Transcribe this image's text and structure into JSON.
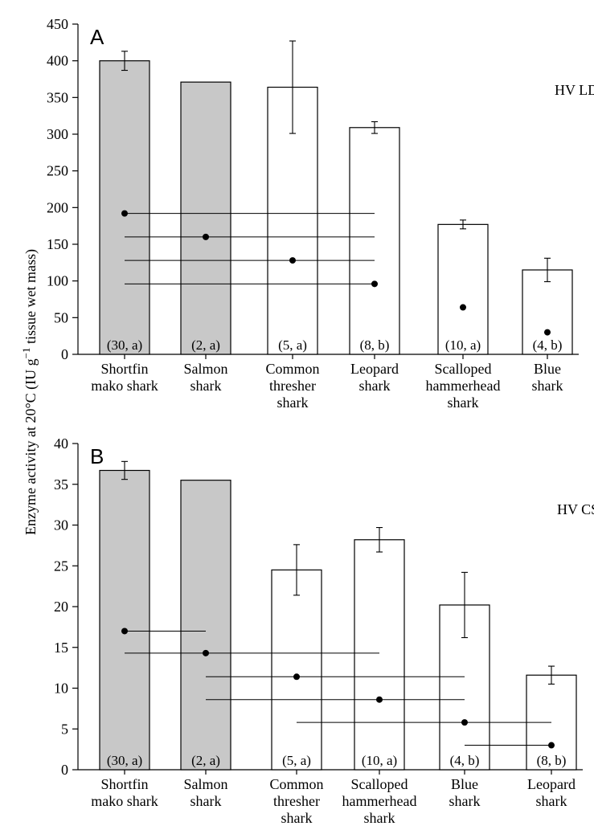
{
  "ylabel_parts": [
    "Enzyme activity at 20°C (IU g",
    "−1",
    " tissue wet mass)"
  ],
  "chart_data": [
    {
      "type": "bar",
      "panel": "A",
      "annotation": "HV LDH",
      "ylim": [
        0,
        450
      ],
      "yticks": [
        0,
        50,
        100,
        150,
        200,
        250,
        300,
        350,
        400,
        450
      ],
      "categories": [
        [
          "Shortfin",
          "mako shark"
        ],
        [
          "Salmon",
          "shark"
        ],
        [
          "Common",
          "thresher",
          "shark"
        ],
        [
          "Leopard",
          "shark"
        ],
        [
          "Scalloped",
          "hammerhead",
          "shark"
        ],
        [
          "Blue",
          "shark"
        ]
      ],
      "values": [
        400,
        371,
        364,
        309,
        177,
        115
      ],
      "errors": [
        13,
        0,
        63,
        8,
        6,
        16
      ],
      "fill": [
        "#c8c8c8",
        "#c8c8c8",
        "#ffffff",
        "#ffffff",
        "#ffffff",
        "#ffffff"
      ],
      "sample_labels": [
        "(30, a)",
        "(2, a)",
        "(5, a)",
        "(8, b)",
        "(10, a)",
        "(4, b)"
      ],
      "comparison_lines": [
        {
          "from": 0,
          "to": 3,
          "y": 192,
          "dot": 0
        },
        {
          "from": 0,
          "to": 3,
          "y": 160,
          "dot": 1
        },
        {
          "from": 0,
          "to": 3,
          "y": 128,
          "dot": 2
        },
        {
          "from": 0,
          "to": 3,
          "y": 96,
          "dot": 3
        }
      ],
      "dots": [
        {
          "category": 4,
          "y": 64
        },
        {
          "category": 5,
          "y": 30
        }
      ]
    },
    {
      "type": "bar",
      "panel": "B",
      "annotation": "HV CS",
      "ylim": [
        0,
        40
      ],
      "yticks": [
        0,
        5,
        10,
        15,
        20,
        25,
        30,
        35,
        40
      ],
      "categories": [
        [
          "Shortfin",
          "mako shark"
        ],
        [
          "Salmon",
          "shark"
        ],
        [
          "Common",
          "thresher",
          "shark"
        ],
        [
          "Scalloped",
          "hammerhead",
          "shark"
        ],
        [
          "Blue",
          "shark"
        ],
        [
          "Leopard",
          "shark"
        ]
      ],
      "values": [
        36.7,
        35.5,
        24.5,
        28.2,
        20.2,
        11.6
      ],
      "errors": [
        1.1,
        0,
        3.1,
        1.5,
        4.0,
        1.1
      ],
      "fill": [
        "#c8c8c8",
        "#c8c8c8",
        "#ffffff",
        "#ffffff",
        "#ffffff",
        "#ffffff"
      ],
      "sample_labels": [
        "(30, a)",
        "(2, a)",
        "(5, a)",
        "(10, a)",
        "(4, b)",
        "(8, b)"
      ],
      "comparison_lines": [
        {
          "from": 0,
          "to": 1,
          "y": 17,
          "dot": 0
        },
        {
          "from": 0,
          "to": 3,
          "y": 14.3,
          "dot": 1
        },
        {
          "from": 1,
          "to": 4,
          "y": 11.4,
          "dot": 2
        },
        {
          "from": 1,
          "to": 4,
          "y": 8.6,
          "dot": 3
        },
        {
          "from": 2,
          "to": 5,
          "y": 5.8,
          "dot": 4
        },
        {
          "from": 4,
          "to": 5,
          "y": 3.0,
          "dot": 5
        }
      ],
      "dots": []
    }
  ]
}
